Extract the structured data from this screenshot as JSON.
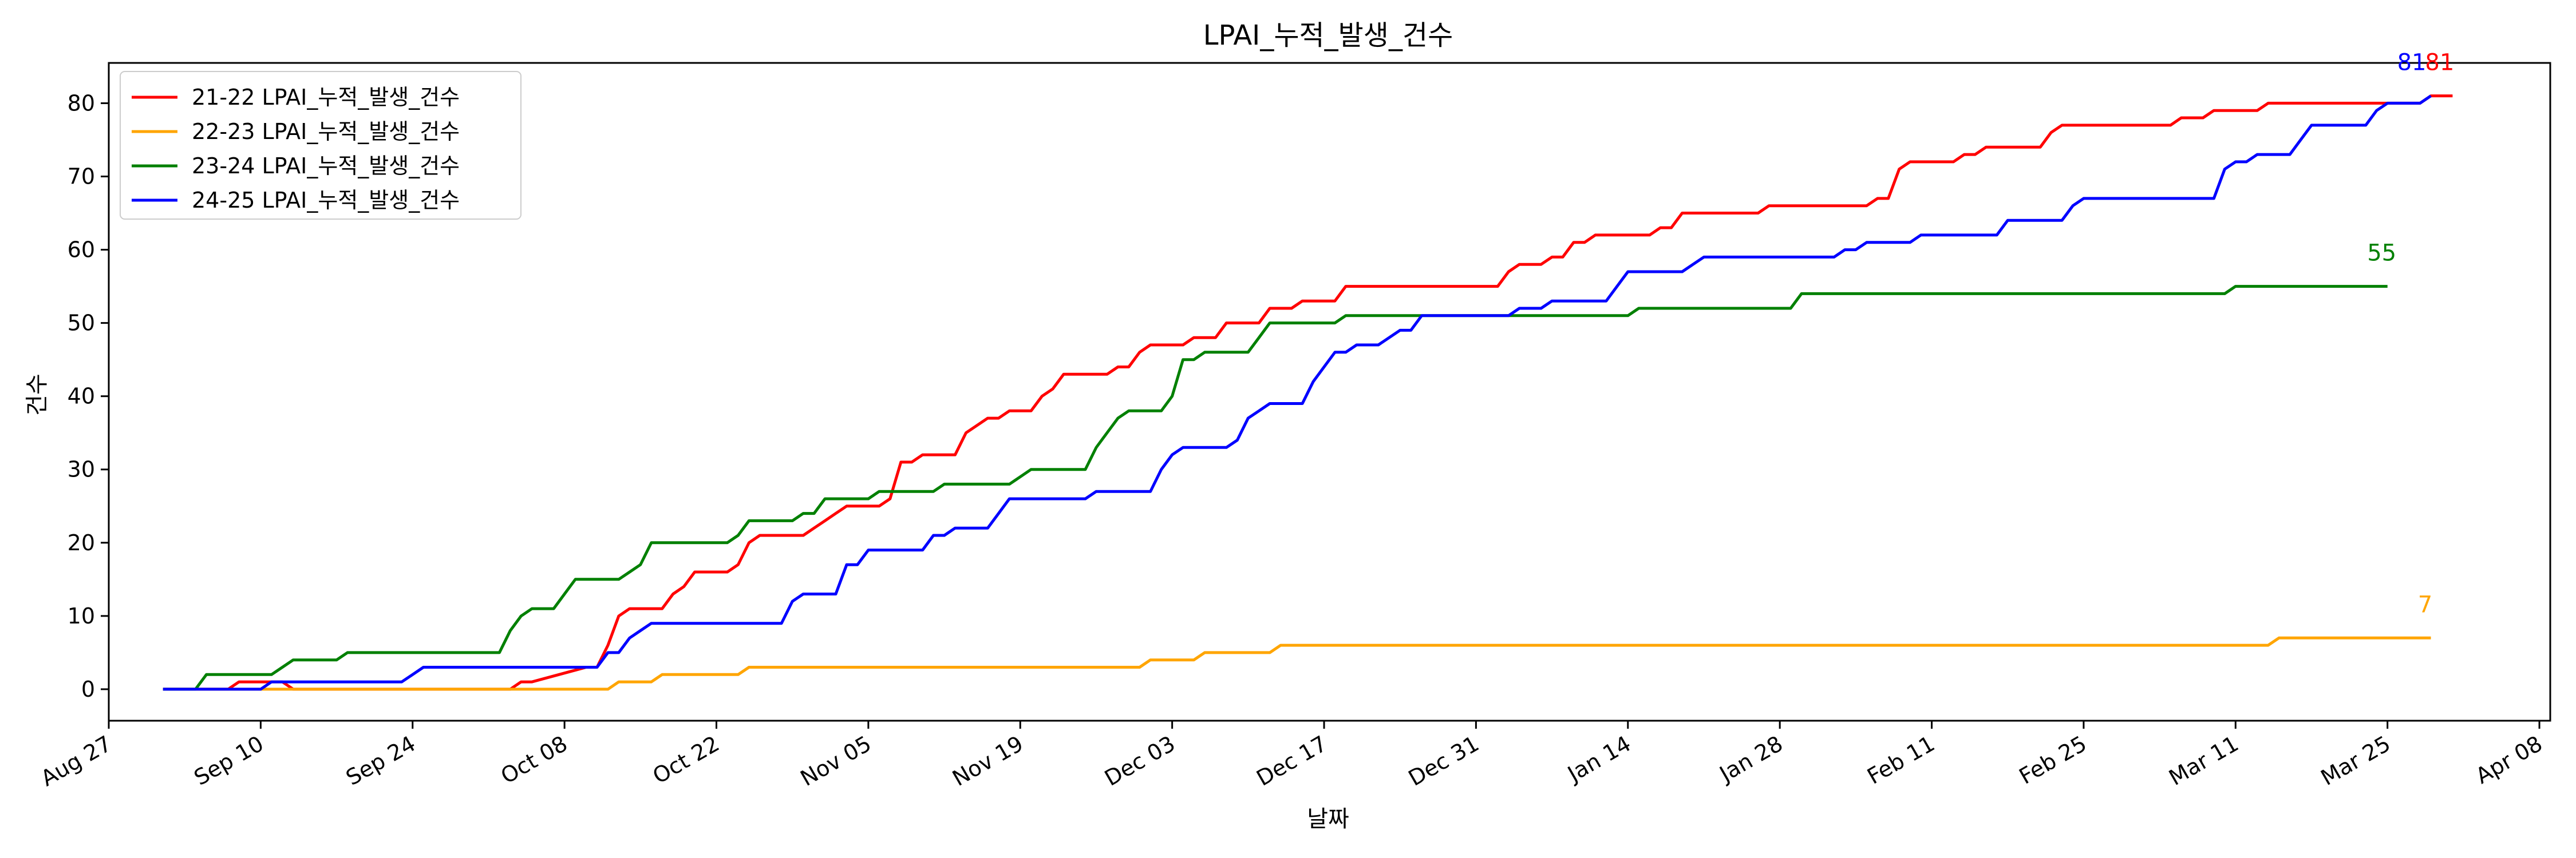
{
  "chart_data": {
    "type": "line",
    "title": "LPAI_누적_발생_건수",
    "xlabel": "날짜",
    "ylabel": "건수",
    "x_unit": "days since Aug 27",
    "xlim": [
      0,
      225
    ],
    "ylim": [
      -4.3,
      85.5
    ],
    "x_ticks": [
      {
        "day": 0,
        "label": "Aug 27"
      },
      {
        "day": 14,
        "label": "Sep 10"
      },
      {
        "day": 28,
        "label": "Sep 24"
      },
      {
        "day": 42,
        "label": "Oct 08"
      },
      {
        "day": 56,
        "label": "Oct 22"
      },
      {
        "day": 70,
        "label": "Nov 05"
      },
      {
        "day": 84,
        "label": "Nov 19"
      },
      {
        "day": 98,
        "label": "Dec 03"
      },
      {
        "day": 112,
        "label": "Dec 17"
      },
      {
        "day": 126,
        "label": "Dec 31"
      },
      {
        "day": 140,
        "label": "Jan 14"
      },
      {
        "day": 154,
        "label": "Jan 28"
      },
      {
        "day": 168,
        "label": "Feb 11"
      },
      {
        "day": 182,
        "label": "Feb 25"
      },
      {
        "day": 196,
        "label": "Mar 11"
      },
      {
        "day": 210,
        "label": "Mar 25"
      },
      {
        "day": 224,
        "label": "Apr 08"
      }
    ],
    "y_ticks": [
      0,
      10,
      20,
      30,
      40,
      50,
      60,
      70,
      80
    ],
    "legend_position": "upper-left",
    "series": [
      {
        "name": "21-22 LPAI_누적_발생_건수",
        "color": "#ff0000",
        "final_label": "81",
        "points": [
          [
            5,
            0
          ],
          [
            11,
            0
          ],
          [
            12,
            1
          ],
          [
            16,
            1
          ],
          [
            17,
            0
          ],
          [
            37,
            0
          ],
          [
            38,
            1
          ],
          [
            39,
            1
          ],
          [
            44,
            3
          ],
          [
            45,
            3
          ],
          [
            46,
            6
          ],
          [
            47,
            10
          ],
          [
            48,
            11
          ],
          [
            51,
            11
          ],
          [
            52,
            13
          ],
          [
            53,
            14
          ],
          [
            54,
            16
          ],
          [
            57,
            16
          ],
          [
            58,
            17
          ],
          [
            59,
            20
          ],
          [
            60,
            21
          ],
          [
            64,
            21
          ],
          [
            65,
            22
          ],
          [
            66,
            23
          ],
          [
            67,
            24
          ],
          [
            68,
            25
          ],
          [
            71,
            25
          ],
          [
            72,
            26
          ],
          [
            73,
            31
          ],
          [
            74,
            31
          ],
          [
            75,
            32
          ],
          [
            78,
            32
          ],
          [
            79,
            35
          ],
          [
            80,
            36
          ],
          [
            81,
            37
          ],
          [
            82,
            37
          ],
          [
            83,
            38
          ],
          [
            85,
            38
          ],
          [
            86,
            40
          ],
          [
            87,
            41
          ],
          [
            88,
            43
          ],
          [
            92,
            43
          ],
          [
            93,
            44
          ],
          [
            94,
            44
          ],
          [
            95,
            46
          ],
          [
            96,
            47
          ],
          [
            99,
            47
          ],
          [
            100,
            48
          ],
          [
            102,
            48
          ],
          [
            103,
            50
          ],
          [
            106,
            50
          ],
          [
            107,
            52
          ],
          [
            109,
            52
          ],
          [
            110,
            53
          ],
          [
            113,
            53
          ],
          [
            114,
            55
          ],
          [
            128,
            55
          ],
          [
            129,
            57
          ],
          [
            130,
            58
          ],
          [
            132,
            58
          ],
          [
            133,
            59
          ],
          [
            134,
            59
          ],
          [
            135,
            61
          ],
          [
            136,
            61
          ],
          [
            137,
            62
          ],
          [
            142,
            62
          ],
          [
            143,
            63
          ],
          [
            144,
            63
          ],
          [
            145,
            65
          ],
          [
            152,
            65
          ],
          [
            153,
            66
          ],
          [
            162,
            66
          ],
          [
            163,
            67
          ],
          [
            164,
            67
          ],
          [
            165,
            71
          ],
          [
            166,
            72
          ],
          [
            170,
            72
          ],
          [
            171,
            73
          ],
          [
            172,
            73
          ],
          [
            173,
            74
          ],
          [
            178,
            74
          ],
          [
            179,
            76
          ],
          [
            180,
            77
          ],
          [
            190,
            77
          ],
          [
            191,
            78
          ],
          [
            193,
            78
          ],
          [
            194,
            79
          ],
          [
            198,
            79
          ],
          [
            199,
            80
          ],
          [
            209,
            80
          ],
          [
            213,
            80
          ],
          [
            214,
            81
          ],
          [
            216,
            81
          ]
        ]
      },
      {
        "name": "22-23 LPAI_누적_발생_건수",
        "color": "#ffa500",
        "final_label": "7",
        "points": [
          [
            5,
            0
          ],
          [
            46,
            0
          ],
          [
            47,
            1
          ],
          [
            50,
            1
          ],
          [
            51,
            2
          ],
          [
            58,
            2
          ],
          [
            59,
            3
          ],
          [
            95,
            3
          ],
          [
            96,
            4
          ],
          [
            100,
            4
          ],
          [
            101,
            5
          ],
          [
            107,
            5
          ],
          [
            108,
            6
          ],
          [
            199,
            6
          ],
          [
            200,
            7
          ],
          [
            214,
            7
          ]
        ]
      },
      {
        "name": "23-24 LPAI_누적_발생_건수",
        "color": "#008000",
        "final_label": "55",
        "points": [
          [
            5,
            0
          ],
          [
            8,
            0
          ],
          [
            9,
            2
          ],
          [
            15,
            2
          ],
          [
            16,
            3
          ],
          [
            17,
            4
          ],
          [
            21,
            4
          ],
          [
            22,
            5
          ],
          [
            36,
            5
          ],
          [
            37,
            8
          ],
          [
            38,
            10
          ],
          [
            39,
            11
          ],
          [
            41,
            11
          ],
          [
            42,
            13
          ],
          [
            43,
            15
          ],
          [
            47,
            15
          ],
          [
            48,
            16
          ],
          [
            49,
            17
          ],
          [
            50,
            20
          ],
          [
            57,
            20
          ],
          [
            58,
            21
          ],
          [
            59,
            23
          ],
          [
            63,
            23
          ],
          [
            64,
            24
          ],
          [
            65,
            24
          ],
          [
            66,
            26
          ],
          [
            70,
            26
          ],
          [
            71,
            27
          ],
          [
            76,
            27
          ],
          [
            77,
            28
          ],
          [
            83,
            28
          ],
          [
            84,
            29
          ],
          [
            85,
            30
          ],
          [
            90,
            30
          ],
          [
            91,
            33
          ],
          [
            92,
            35
          ],
          [
            93,
            37
          ],
          [
            94,
            38
          ],
          [
            97,
            38
          ],
          [
            98,
            40
          ],
          [
            99,
            45
          ],
          [
            100,
            45
          ],
          [
            101,
            46
          ],
          [
            105,
            46
          ],
          [
            106,
            48
          ],
          [
            107,
            50
          ],
          [
            113,
            50
          ],
          [
            114,
            51
          ],
          [
            140,
            51
          ],
          [
            141,
            52
          ],
          [
            155,
            52
          ],
          [
            156,
            54
          ],
          [
            195,
            54
          ],
          [
            196,
            55
          ],
          [
            210,
            55
          ]
        ]
      },
      {
        "name": "24-25 LPAI_누적_발생_건수",
        "color": "#0000ff",
        "final_label": "81",
        "points": [
          [
            5,
            0
          ],
          [
            14,
            0
          ],
          [
            15,
            1
          ],
          [
            27,
            1
          ],
          [
            28,
            2
          ],
          [
            29,
            3
          ],
          [
            45,
            3
          ],
          [
            46,
            5
          ],
          [
            47,
            5
          ],
          [
            48,
            7
          ],
          [
            49,
            8
          ],
          [
            50,
            9
          ],
          [
            62,
            9
          ],
          [
            63,
            12
          ],
          [
            64,
            13
          ],
          [
            67,
            13
          ],
          [
            68,
            17
          ],
          [
            69,
            17
          ],
          [
            70,
            19
          ],
          [
            75,
            19
          ],
          [
            76,
            21
          ],
          [
            77,
            21
          ],
          [
            78,
            22
          ],
          [
            81,
            22
          ],
          [
            82,
            24
          ],
          [
            83,
            26
          ],
          [
            90,
            26
          ],
          [
            91,
            27
          ],
          [
            96,
            27
          ],
          [
            97,
            30
          ],
          [
            98,
            32
          ],
          [
            99,
            33
          ],
          [
            103,
            33
          ],
          [
            104,
            34
          ],
          [
            105,
            37
          ],
          [
            106,
            38
          ],
          [
            107,
            39
          ],
          [
            110,
            39
          ],
          [
            111,
            42
          ],
          [
            112,
            44
          ],
          [
            113,
            46
          ],
          [
            114,
            46
          ],
          [
            115,
            47
          ],
          [
            117,
            47
          ],
          [
            118,
            48
          ],
          [
            119,
            49
          ],
          [
            120,
            49
          ],
          [
            121,
            51
          ],
          [
            129,
            51
          ],
          [
            130,
            52
          ],
          [
            132,
            52
          ],
          [
            133,
            53
          ],
          [
            138,
            53
          ],
          [
            139,
            55
          ],
          [
            140,
            57
          ],
          [
            145,
            57
          ],
          [
            146,
            58
          ],
          [
            147,
            59
          ],
          [
            159,
            59
          ],
          [
            160,
            60
          ],
          [
            161,
            60
          ],
          [
            162,
            61
          ],
          [
            166,
            61
          ],
          [
            167,
            62
          ],
          [
            174,
            62
          ],
          [
            175,
            64
          ],
          [
            180,
            64
          ],
          [
            181,
            66
          ],
          [
            182,
            67
          ],
          [
            194,
            67
          ],
          [
            195,
            71
          ],
          [
            196,
            72
          ],
          [
            197,
            72
          ],
          [
            198,
            73
          ],
          [
            201,
            73
          ],
          [
            202,
            75
          ],
          [
            203,
            77
          ],
          [
            208,
            77
          ],
          [
            209,
            79
          ],
          [
            210,
            80
          ],
          [
            213,
            80
          ],
          [
            214,
            81
          ]
        ]
      }
    ]
  }
}
